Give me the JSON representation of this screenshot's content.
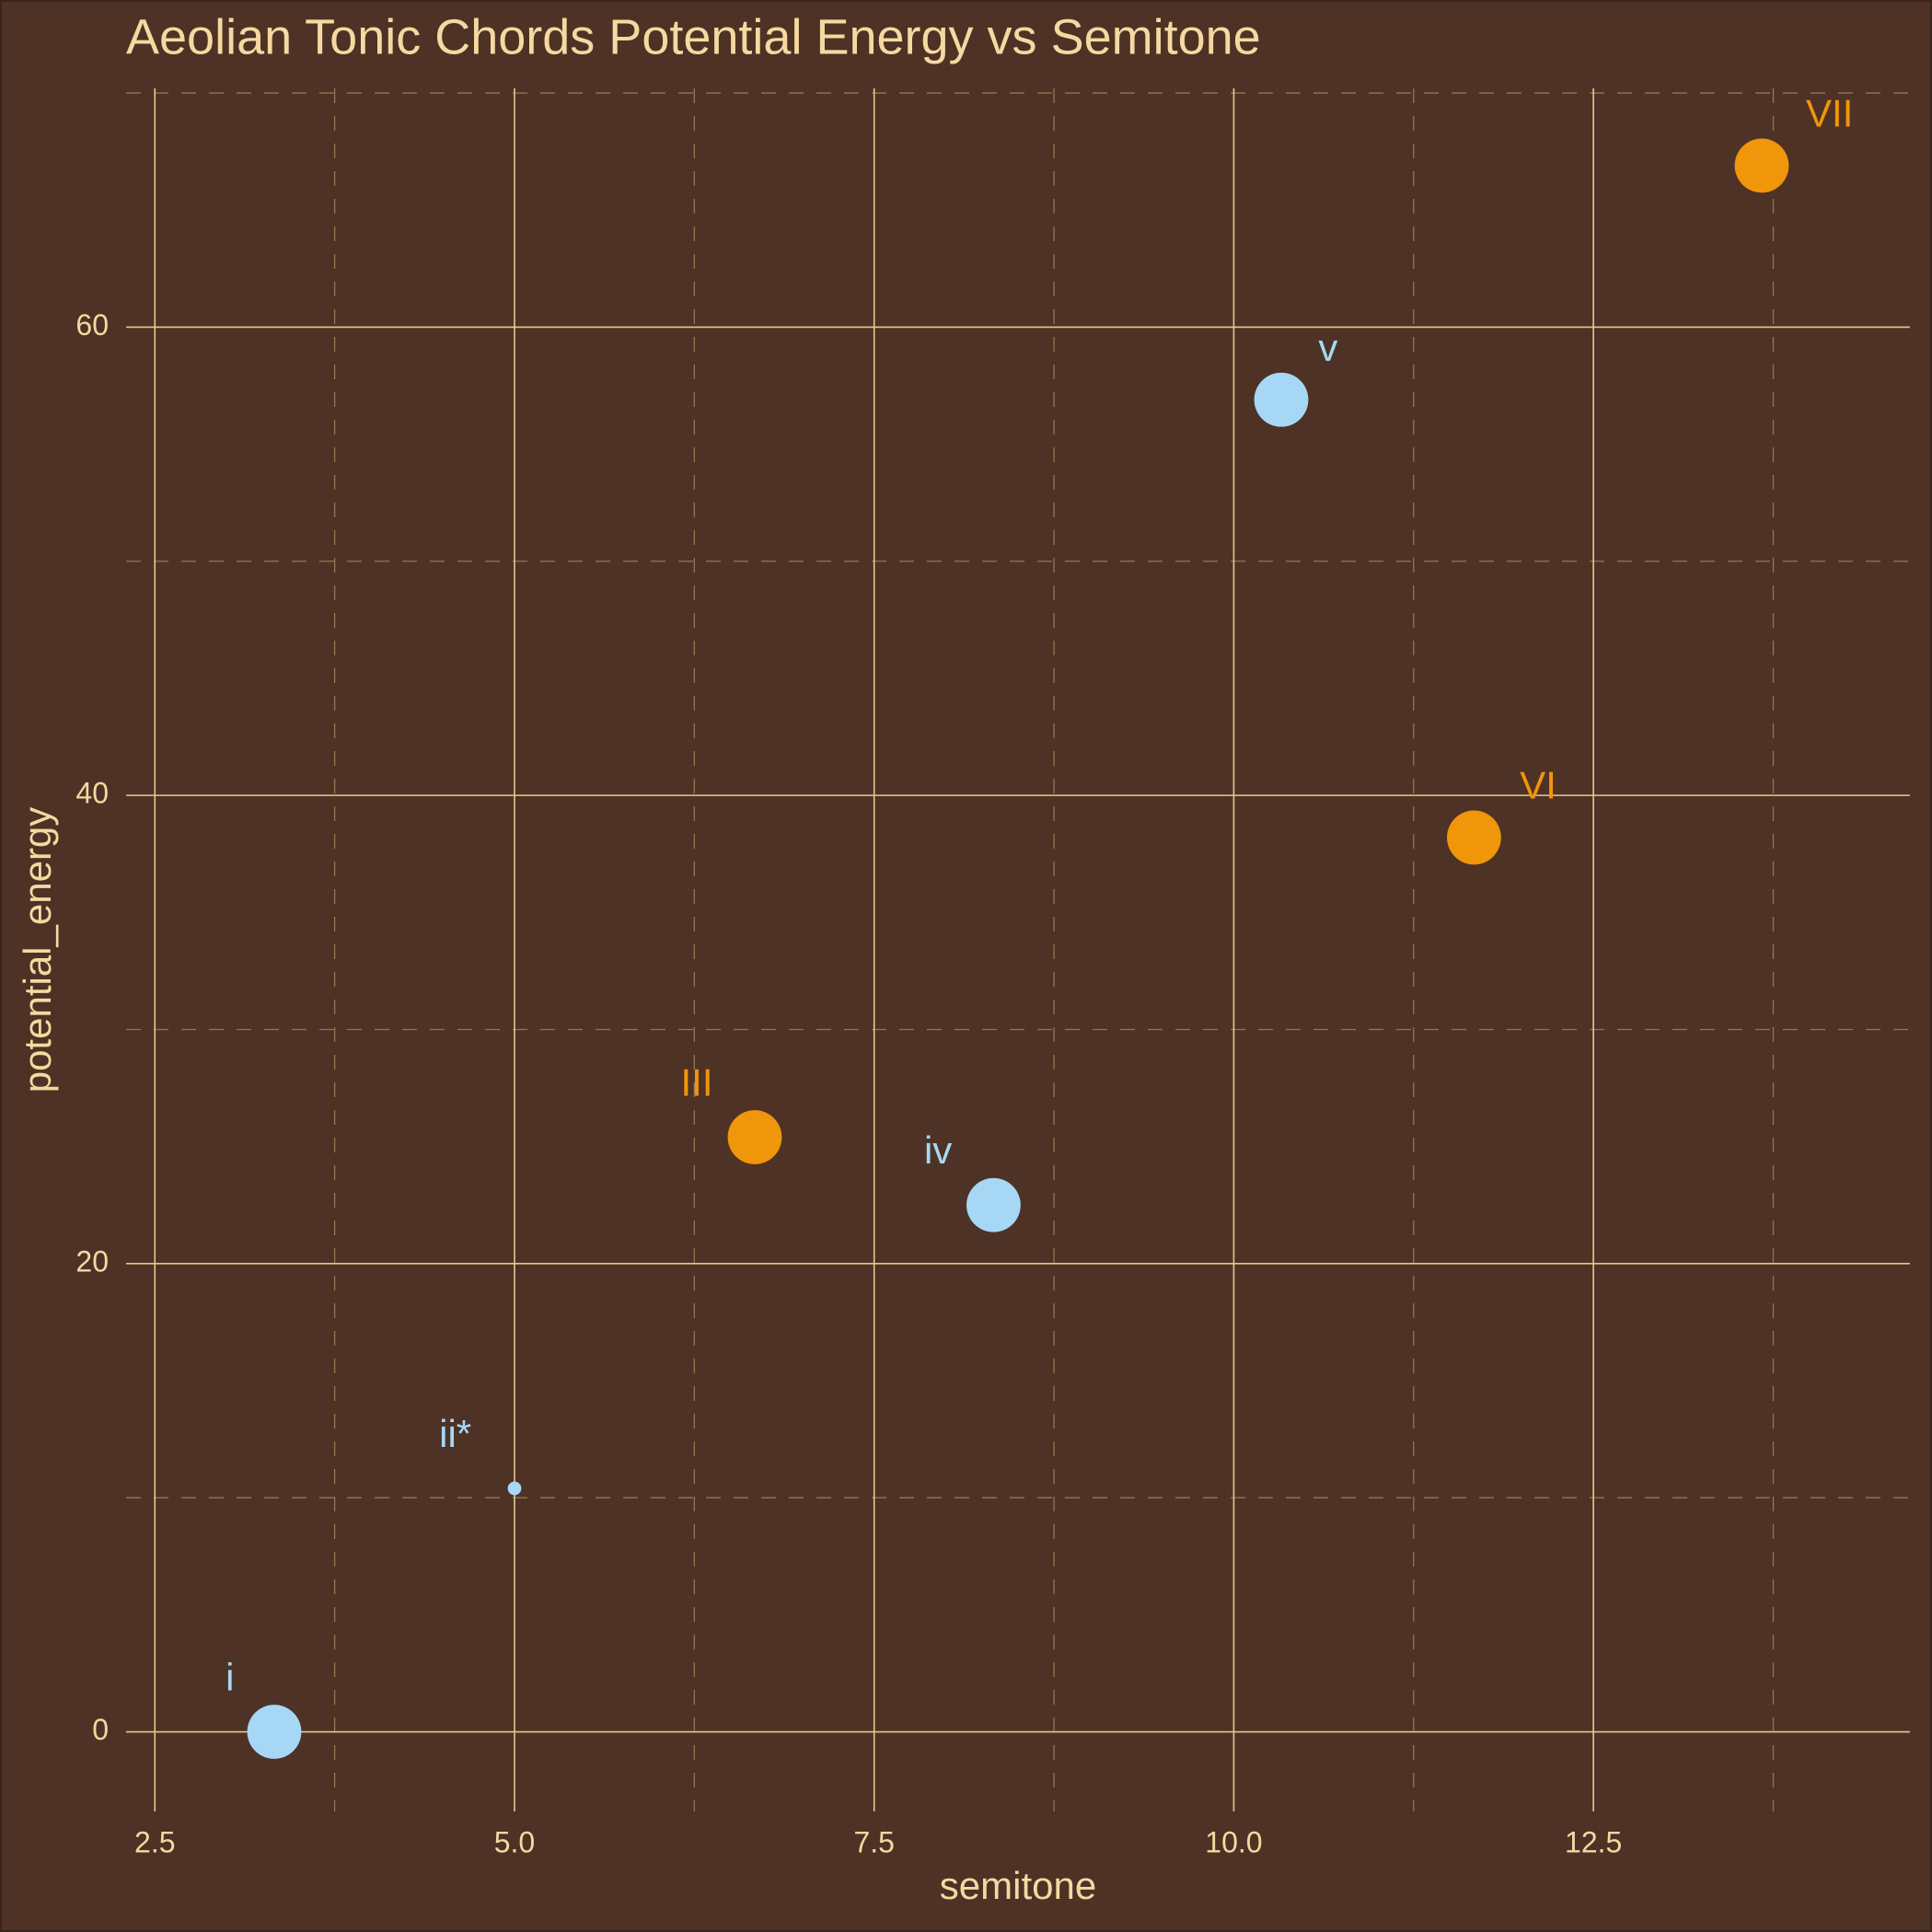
{
  "chart_data": {
    "type": "scatter",
    "title": "Aeolian Tonic Chords Potential Energy vs Semitone",
    "x_label": "semitone",
    "y_label": "potential_energy",
    "labels": [
      "i",
      "ii*",
      "III",
      "iv",
      "v",
      "VI",
      "VII"
    ],
    "x": [
      3.33,
      5,
      6.67,
      8.33,
      10.33,
      11.67,
      13.67
    ],
    "values": [
      0,
      10.4,
      25.4,
      22.5,
      56.9,
      38.2,
      66.9
    ],
    "sizes": [
      6,
      1.5,
      6,
      6,
      6,
      6,
      6
    ],
    "colors": [
      "#a6d8f5",
      "#a6d8f5",
      "#f0960a",
      "#a6d8f5",
      "#a6d8f5",
      "#f0960a",
      "#f0960a"
    ],
    "xlim": [
      2.3,
      14.7
    ],
    "ylim": [
      -3.4,
      70.2
    ],
    "xticks": [
      {
        "value": 2.5,
        "label": "2.5"
      },
      {
        "value": 5,
        "label": "5.0"
      },
      {
        "value": 7.5,
        "label": "7.5"
      },
      {
        "value": 10,
        "label": "10.0"
      },
      {
        "value": 12.5,
        "label": "12.5"
      }
    ],
    "yticks": [
      0,
      20,
      40,
      60
    ],
    "x_minor_ticks": [
      3.75,
      6.25,
      8.75,
      11.25,
      13.75
    ],
    "y_minor_ticks": [
      10,
      30,
      50,
      70
    ],
    "grid": true
  }
}
